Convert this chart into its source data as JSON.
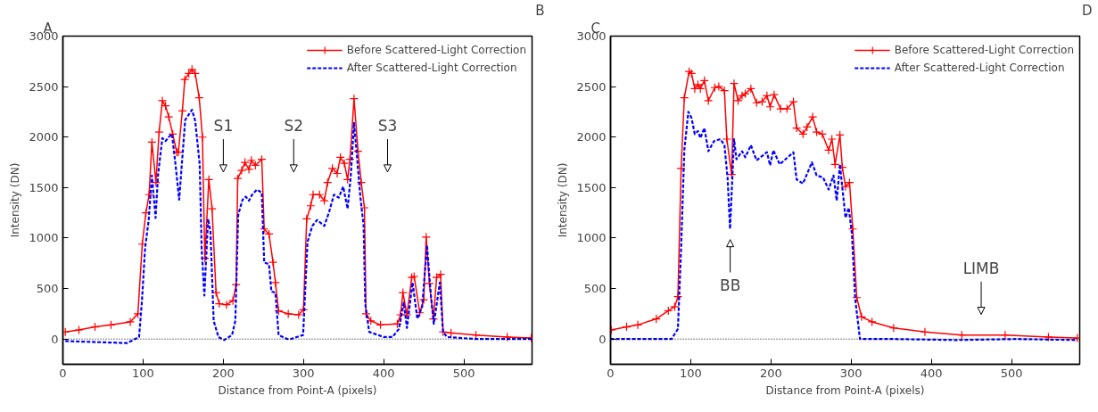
{
  "chart_data": [
    {
      "type": "line",
      "xlabel": "Distance from Point-A (pixels)",
      "ylabel": "Intensity (DN)",
      "xlim": [
        0,
        585
      ],
      "ylim": [
        -250,
        3000
      ],
      "xticks": [
        0,
        100,
        200,
        300,
        400,
        500
      ],
      "yticks": [
        0,
        500,
        1000,
        1500,
        2000,
        2500,
        3000
      ],
      "legend": "top right",
      "grid": false,
      "ref_lines": [
        {
          "axis": "y",
          "value": 0,
          "color": "#000000",
          "line_style": "dotted"
        }
      ],
      "annotations": [
        "A",
        "B",
        "S1",
        "S2",
        "S3"
      ],
      "series": [
        {
          "name": "Before Scattered-Light Correction",
          "color": "#ff0000",
          "marker": "cross",
          "line_style": "solid",
          "x": [
            3,
            20,
            40,
            60,
            84,
            93.5,
            99,
            103.5,
            107.5,
            111,
            116,
            120,
            124,
            128,
            132,
            137,
            142,
            144,
            149,
            152,
            157,
            161,
            165,
            170,
            174,
            177,
            182,
            186,
            191,
            195,
            204,
            212,
            216,
            218,
            223,
            227,
            232,
            235,
            240,
            248,
            251,
            257,
            262,
            265,
            269,
            281,
            294,
            300,
            304,
            309,
            312,
            320,
            326,
            330,
            336,
            342,
            346,
            351,
            355,
            358,
            363,
            368,
            372,
            376,
            378,
            384,
            396,
            417,
            421,
            424,
            429,
            435,
            438,
            445,
            450,
            453,
            457,
            462,
            466,
            471,
            474,
            484,
            515,
            554,
            584
          ],
          "values": [
            70,
            90,
            120,
            140,
            170,
            250,
            940,
            1250,
            1430,
            1950,
            1550,
            2050,
            2360,
            2310,
            2200,
            2030,
            1850,
            1850,
            2260,
            2570,
            2630,
            2670,
            2630,
            2390,
            2000,
            800,
            1580,
            1290,
            460,
            350,
            340,
            380,
            540,
            1590,
            1670,
            1750,
            1680,
            1770,
            1720,
            1780,
            1090,
            1040,
            760,
            560,
            280,
            250,
            240,
            290,
            1190,
            1320,
            1430,
            1430,
            1370,
            1550,
            1690,
            1640,
            1800,
            1740,
            1580,
            1780,
            2380,
            1860,
            1550,
            1300,
            250,
            180,
            140,
            150,
            240,
            460,
            240,
            610,
            620,
            260,
            390,
            1010,
            550,
            200,
            610,
            640,
            70,
            60,
            40,
            20,
            10
          ]
        },
        {
          "name": "After Scattered-Light Correction",
          "color": "#0000ff",
          "marker": "none",
          "line_style": "dashed",
          "x": [
            3,
            80,
            95,
            98.6,
            102.5,
            107,
            111,
            115.6,
            118.6,
            124,
            128,
            132,
            136,
            140,
            145,
            152.5,
            161,
            165,
            170.6,
            173,
            176.4,
            181,
            184,
            188,
            194,
            201,
            211,
            215,
            218.6,
            224,
            228,
            232,
            236,
            242,
            248,
            251,
            257,
            260,
            265,
            269,
            280,
            284,
            299.5,
            305,
            311,
            317,
            326,
            332,
            338,
            344,
            349.5,
            355,
            359,
            363,
            367,
            371,
            375,
            377,
            382,
            400,
            411,
            419,
            425,
            429,
            436,
            442,
            448,
            454,
            459,
            462.5,
            470,
            474,
            479,
            515,
            584
          ],
          "values": [
            -20,
            -40,
            20,
            380,
            900,
            1180,
            1620,
            1200,
            1620,
            1990,
            1960,
            2000,
            2030,
            1760,
            1380,
            2170,
            2270,
            2160,
            1730,
            900,
            430,
            1190,
            1070,
            180,
            20,
            -10,
            40,
            180,
            1230,
            1380,
            1410,
            1370,
            1430,
            1480,
            1450,
            760,
            740,
            470,
            460,
            40,
            0,
            0,
            40,
            960,
            1120,
            1180,
            1120,
            1260,
            1430,
            1400,
            1510,
            1290,
            1620,
            2140,
            1780,
            1400,
            1120,
            350,
            70,
            20,
            20,
            100,
            360,
            110,
            560,
            200,
            320,
            930,
            420,
            150,
            560,
            70,
            20,
            0,
            0
          ]
        }
      ]
    },
    {
      "type": "line",
      "xlabel": "Distance from Point-A (pixels)",
      "ylabel": "Intensity (DN)",
      "xlim": [
        0,
        585
      ],
      "ylim": [
        -250,
        3000
      ],
      "xticks": [
        0,
        100,
        200,
        300,
        400,
        500
      ],
      "yticks": [
        0,
        500,
        1000,
        1500,
        2000,
        2500,
        3000
      ],
      "legend": "top right",
      "grid": false,
      "ref_lines": [
        {
          "axis": "y",
          "value": 0,
          "color": "#000000",
          "line_style": "dotted"
        }
      ],
      "annotations": [
        "C",
        "D",
        "BB",
        "LIMB"
      ],
      "series": [
        {
          "name": "Before Scattered-Light Correction",
          "color": "#ff0000",
          "marker": "cross",
          "line_style": "solid",
          "x": [
            1,
            20,
            34,
            57,
            72,
            80,
            84,
            88,
            92,
            98,
            101,
            105,
            109,
            112,
            117,
            122,
            130,
            135,
            142,
            145,
            151,
            154,
            159,
            164,
            168,
            175,
            182,
            189,
            195,
            199,
            204,
            212,
            220,
            228,
            232,
            240,
            245,
            252,
            257,
            264,
            272,
            276,
            280,
            286,
            289,
            293,
            298,
            302,
            307,
            313,
            326,
            353,
            392,
            438,
            492,
            546,
            582
          ],
          "values": [
            90,
            120,
            140,
            200,
            280,
            320,
            420,
            1690,
            2390,
            2650,
            2630,
            2480,
            2520,
            2480,
            2560,
            2360,
            2490,
            2500,
            2460,
            1980,
            1630,
            2530,
            2360,
            2410,
            2430,
            2480,
            2340,
            2350,
            2410,
            2300,
            2420,
            2280,
            2280,
            2350,
            2090,
            2030,
            2100,
            2200,
            2050,
            2030,
            1870,
            1980,
            1730,
            2020,
            1700,
            1510,
            1550,
            1090,
            410,
            220,
            170,
            110,
            70,
            40,
            40,
            20,
            10
          ]
        },
        {
          "name": "After Scattered-Light Correction",
          "color": "#0000ff",
          "marker": "none",
          "line_style": "dashed",
          "x": [
            0,
            76,
            84,
            88,
            92,
            97,
            101,
            105,
            109,
            112,
            117,
            122,
            129,
            137,
            142,
            146,
            149,
            152,
            154,
            157,
            164,
            168,
            175,
            182,
            195,
            199,
            203,
            211,
            228,
            232,
            240,
            251,
            257,
            265,
            272,
            278,
            282,
            286,
            293,
            297,
            301,
            305,
            311,
            353,
            430,
            507,
            582
          ],
          "values": [
            0,
            0,
            100,
            900,
            1870,
            2250,
            2190,
            2030,
            2060,
            1990,
            2090,
            1860,
            1960,
            1980,
            1920,
            1590,
            1090,
            1620,
            1980,
            1780,
            1860,
            1800,
            1920,
            1770,
            1850,
            1720,
            1870,
            1730,
            1850,
            1580,
            1540,
            1750,
            1620,
            1600,
            1480,
            1620,
            1370,
            1730,
            1200,
            1300,
            1040,
            400,
            0,
            0,
            -10,
            0,
            -10
          ]
        }
      ]
    }
  ]
}
